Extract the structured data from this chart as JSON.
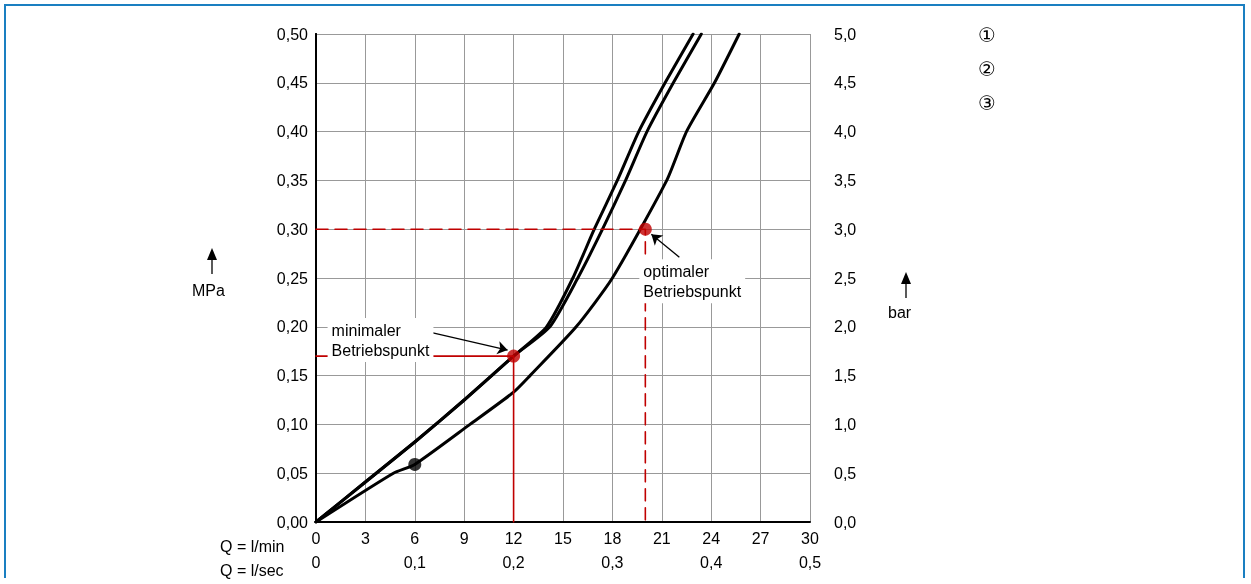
{
  "chart_data": {
    "type": "line",
    "xlabel": "Q = l/min",
    "x2label": "Q = l/sec",
    "ylabel": "MPa",
    "y2label": "bar",
    "xlim": [
      0,
      30
    ],
    "xticks": [
      0,
      3,
      6,
      9,
      12,
      15,
      18,
      21,
      24,
      27,
      30
    ],
    "x2lim": [
      0,
      0.5
    ],
    "x2ticks": [
      {
        "value": 0,
        "label": "0"
      },
      {
        "value": 0.1,
        "label": "0,1"
      },
      {
        "value": 0.2,
        "label": "0,2"
      },
      {
        "value": 0.3,
        "label": "0,3"
      },
      {
        "value": 0.4,
        "label": "0,4"
      },
      {
        "value": 0.5,
        "label": "0,5"
      }
    ],
    "ylim": [
      0,
      0.5
    ],
    "yticks": [
      {
        "value": 0,
        "label": "0,00"
      },
      {
        "value": 0.05,
        "label": "0,05"
      },
      {
        "value": 0.1,
        "label": "0,10"
      },
      {
        "value": 0.15,
        "label": "0,15"
      },
      {
        "value": 0.2,
        "label": "0,20"
      },
      {
        "value": 0.25,
        "label": "0,25"
      },
      {
        "value": 0.3,
        "label": "0,30"
      },
      {
        "value": 0.35,
        "label": "0,35"
      },
      {
        "value": 0.4,
        "label": "0,40"
      },
      {
        "value": 0.45,
        "label": "0,45"
      },
      {
        "value": 0.5,
        "label": "0,50"
      }
    ],
    "y2lim": [
      0,
      5
    ],
    "y2ticks": [
      {
        "value": 0,
        "label": "0,0"
      },
      {
        "value": 0.5,
        "label": "0,5"
      },
      {
        "value": 1,
        "label": "1,0"
      },
      {
        "value": 1.5,
        "label": "1,5"
      },
      {
        "value": 2,
        "label": "2,0"
      },
      {
        "value": 2.5,
        "label": "2,5"
      },
      {
        "value": 3,
        "label": "3,0"
      },
      {
        "value": 3.5,
        "label": "3,5"
      },
      {
        "value": 4,
        "label": "4,0"
      },
      {
        "value": 4.5,
        "label": "4,5"
      },
      {
        "value": 5,
        "label": "5,0"
      }
    ],
    "grid": true,
    "legend": "top right",
    "marker": "none",
    "line_style": "solid",
    "series": [
      {
        "name": "①",
        "color": "#000000",
        "x": [
          0,
          3,
          6,
          9,
          12,
          14,
          15.6,
          16.9,
          18.3,
          19.6,
          21.2,
          22.9
        ],
        "values": [
          0,
          0.041,
          0.082,
          0.125,
          0.17,
          0.2,
          0.25,
          0.3,
          0.35,
          0.4,
          0.45,
          0.5
        ]
      },
      {
        "name": "②",
        "color": "#000000",
        "x": [
          0,
          3,
          6,
          9,
          12,
          14.2,
          15.9,
          17.4,
          18.8,
          20.1,
          21.7,
          23.4
        ],
        "values": [
          0,
          0.041,
          0.082,
          0.125,
          0.17,
          0.2,
          0.25,
          0.3,
          0.35,
          0.4,
          0.45,
          0.5
        ]
      },
      {
        "name": "③",
        "color": "#000000",
        "x": [
          0,
          4.7,
          6,
          9.35,
          12,
          13,
          15.8,
          18,
          21.3,
          22.5,
          24.2,
          25.7
        ],
        "values": [
          0,
          0.05,
          0.059,
          0.1,
          0.133,
          0.15,
          0.2,
          0.25,
          0.35,
          0.4,
          0.45,
          0.5
        ]
      },
      {
        "type": "line",
        "color": "#c00000",
        "line_style": "solid",
        "x": [
          0,
          12,
          12
        ],
        "values": [
          0.17,
          0.17,
          0
        ]
      },
      {
        "type": "line",
        "color": "#c00000",
        "line_style": "dashed",
        "x": [
          0,
          20,
          20
        ],
        "values": [
          0.3,
          0.3,
          0
        ]
      },
      {
        "type": "scatter",
        "color": "#c00000",
        "marker": "circle",
        "x": [
          12,
          20
        ],
        "values": [
          0.17,
          0.3
        ]
      },
      {
        "type": "scatter",
        "color": "#000000",
        "marker": "circle",
        "x": [
          6
        ],
        "values": [
          0.059
        ]
      }
    ],
    "annotations": [
      {
        "text": "minimaler\nBetriebspunkt",
        "x": 12,
        "y": 0.17
      },
      {
        "text": "optimaler\nBetriebspunkt",
        "x": 20,
        "y": 0.3
      }
    ]
  }
}
